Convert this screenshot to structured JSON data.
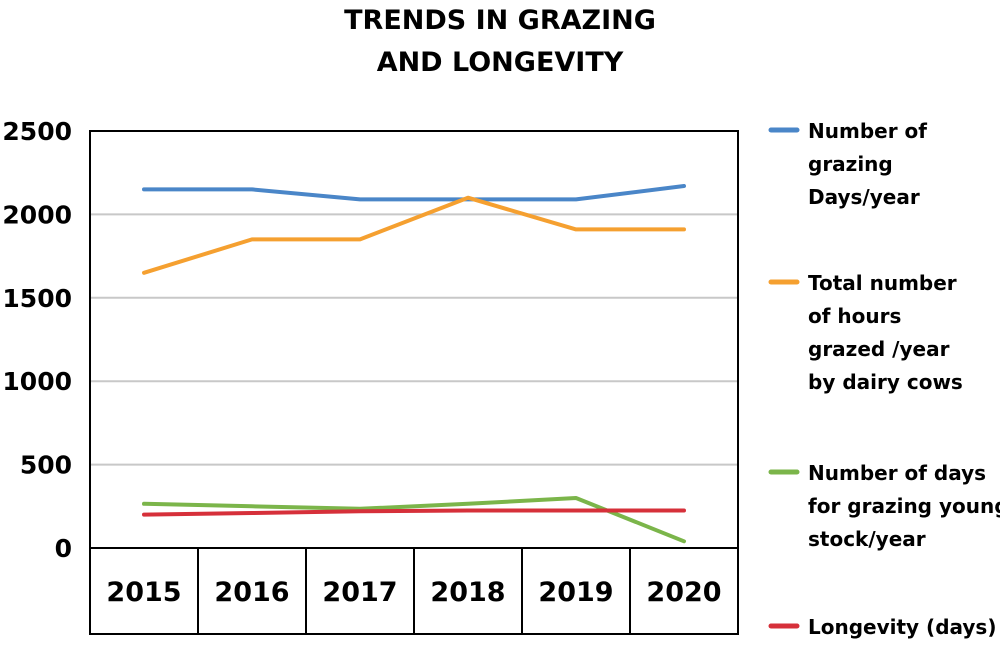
{
  "chart_data": {
    "type": "line",
    "title": [
      "TRENDS IN GRAZING",
      "AND LONGEVITY"
    ],
    "categories": [
      "2015",
      "2016",
      "2017",
      "2018",
      "2019",
      "2020"
    ],
    "ylim": [
      0,
      2500
    ],
    "yticks": [
      0,
      500,
      1000,
      1500,
      2000,
      2500
    ],
    "grid": true,
    "legend_position": "right",
    "series": [
      {
        "name": "Number of grazing Days/year",
        "legend_lines": [
          "Number of",
          "grazing",
          "Days/year"
        ],
        "color": "#4a86c8",
        "values": [
          2150,
          2150,
          2090,
          2090,
          2090,
          2170
        ]
      },
      {
        "name": "Total number of hours grazed /year by dairy cows",
        "legend_lines": [
          "Total number",
          "of hours",
          "grazed /year",
          "by dairy cows"
        ],
        "color": "#f5a030",
        "values": [
          1650,
          1850,
          1850,
          2100,
          1910,
          1910
        ]
      },
      {
        "name": "Number of days for grazing young stock/year",
        "legend_lines": [
          "Number of days",
          "for grazing young",
          "stock/year"
        ],
        "color": "#7bb54a",
        "values": [
          265,
          250,
          235,
          265,
          300,
          40
        ]
      },
      {
        "name": "Longevity (days)",
        "legend_lines": [
          "Longevity (days)"
        ],
        "color": "#d6303a",
        "values": [
          200,
          210,
          220,
          225,
          225,
          225
        ]
      }
    ]
  }
}
